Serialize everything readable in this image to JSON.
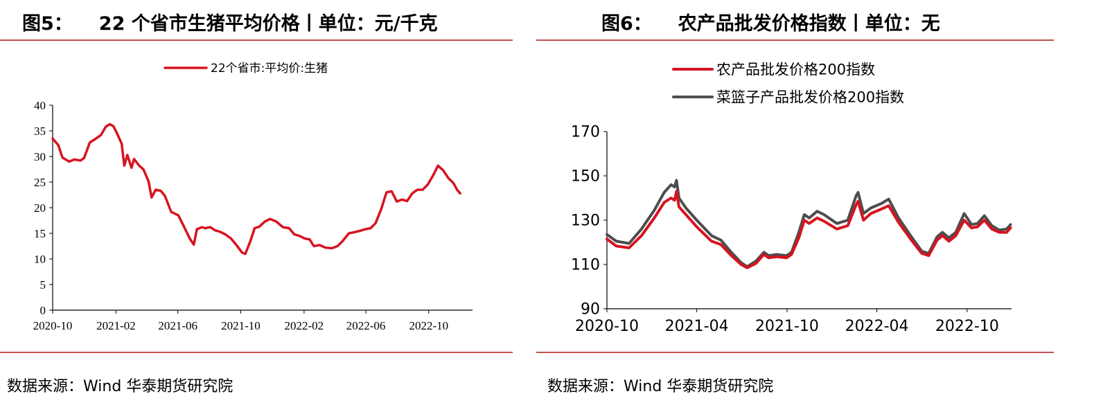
{
  "left": {
    "figure_number": "图5：",
    "title": "22 个省市生猪平均价格丨单位：元/千克",
    "source": "数据来源：Wind  华泰期货研究院"
  },
  "right": {
    "figure_number": "图6：",
    "title": "农产品批发价格指数丨单位：无",
    "source": "数据来源：Wind  华泰期货研究院"
  },
  "colors": {
    "red": "#d7131f",
    "gray": "#4d4d4d",
    "rule": "#c0504d"
  },
  "chart_data": [
    {
      "type": "line",
      "title": "",
      "xlabel": "",
      "ylabel": "",
      "ylim": [
        0,
        40
      ],
      "yticks": [
        "0",
        "5",
        "10",
        "15",
        "20",
        "25",
        "30",
        "35",
        "40"
      ],
      "xticks": [
        "2020-10",
        "2021-02",
        "2021-06",
        "2021-10",
        "2022-02",
        "2022-06",
        "2022-10"
      ],
      "legend_position": "top-center",
      "grid": false,
      "series": [
        {
          "name": "22个省市:平均价:生猪",
          "color": "#d7131f",
          "points": [
            [
              "2020-10-01",
              33.5
            ],
            [
              "2020-10-12",
              32.2
            ],
            [
              "2020-10-20",
              29.8
            ],
            [
              "2020-11-02",
              29.0
            ],
            [
              "2020-11-12",
              29.4
            ],
            [
              "2020-11-24",
              29.2
            ],
            [
              "2020-12-01",
              29.7
            ],
            [
              "2020-12-12",
              32.7
            ],
            [
              "2020-12-24",
              33.5
            ],
            [
              "2021-01-03",
              34.2
            ],
            [
              "2021-01-12",
              35.8
            ],
            [
              "2021-01-20",
              36.3
            ],
            [
              "2021-01-27",
              35.9
            ],
            [
              "2021-02-03",
              34.5
            ],
            [
              "2021-02-12",
              32.5
            ],
            [
              "2021-02-17",
              28.2
            ],
            [
              "2021-02-23",
              30.3
            ],
            [
              "2021-03-03",
              27.8
            ],
            [
              "2021-03-08",
              29.5
            ],
            [
              "2021-03-18",
              28.2
            ],
            [
              "2021-03-26",
              27.5
            ],
            [
              "2021-04-05",
              25.2
            ],
            [
              "2021-04-11",
              22.0
            ],
            [
              "2021-04-19",
              23.5
            ],
            [
              "2021-04-29",
              23.3
            ],
            [
              "2021-05-07",
              22.3
            ],
            [
              "2021-05-19",
              19.2
            ],
            [
              "2021-06-02",
              18.5
            ],
            [
              "2021-06-12",
              16.5
            ],
            [
              "2021-06-24",
              14.0
            ],
            [
              "2021-07-02",
              12.8
            ],
            [
              "2021-07-08",
              15.8
            ],
            [
              "2021-07-18",
              16.2
            ],
            [
              "2021-07-24",
              16.0
            ],
            [
              "2021-08-03",
              16.2
            ],
            [
              "2021-08-12",
              15.6
            ],
            [
              "2021-08-22",
              15.3
            ],
            [
              "2021-09-01",
              14.8
            ],
            [
              "2021-09-12",
              14.0
            ],
            [
              "2021-09-22",
              12.8
            ],
            [
              "2021-10-04",
              11.2
            ],
            [
              "2021-10-10",
              11.0
            ],
            [
              "2021-10-20",
              13.5
            ],
            [
              "2021-10-28",
              16.0
            ],
            [
              "2021-11-06",
              16.3
            ],
            [
              "2021-11-17",
              17.3
            ],
            [
              "2021-11-27",
              17.8
            ],
            [
              "2021-12-09",
              17.3
            ],
            [
              "2021-12-22",
              16.2
            ],
            [
              "2022-01-03",
              16.0
            ],
            [
              "2022-01-13",
              14.8
            ],
            [
              "2022-01-23",
              14.5
            ],
            [
              "2022-02-02",
              14.0
            ],
            [
              "2022-02-12",
              13.8
            ],
            [
              "2022-02-20",
              12.5
            ],
            [
              "2022-03-03",
              12.7
            ],
            [
              "2022-03-15",
              12.2
            ],
            [
              "2022-03-27",
              12.1
            ],
            [
              "2022-04-07",
              12.5
            ],
            [
              "2022-04-17",
              13.5
            ],
            [
              "2022-04-29",
              15.0
            ],
            [
              "2022-05-09",
              15.2
            ],
            [
              "2022-05-21",
              15.5
            ],
            [
              "2022-05-31",
              15.8
            ],
            [
              "2022-06-10",
              16.0
            ],
            [
              "2022-06-20",
              17.0
            ],
            [
              "2022-07-01",
              19.8
            ],
            [
              "2022-07-11",
              23.0
            ],
            [
              "2022-07-21",
              23.2
            ],
            [
              "2022-07-31",
              21.2
            ],
            [
              "2022-08-10",
              21.6
            ],
            [
              "2022-08-20",
              21.3
            ],
            [
              "2022-08-30",
              22.8
            ],
            [
              "2022-09-09",
              23.5
            ],
            [
              "2022-09-19",
              23.5
            ],
            [
              "2022-09-29",
              24.5
            ],
            [
              "2022-10-09",
              26.2
            ],
            [
              "2022-10-19",
              28.2
            ],
            [
              "2022-10-29",
              27.3
            ],
            [
              "2022-11-08",
              25.8
            ],
            [
              "2022-11-18",
              24.8
            ],
            [
              "2022-11-25",
              23.5
            ],
            [
              "2022-12-01",
              22.8
            ]
          ]
        }
      ]
    },
    {
      "type": "line",
      "title": "",
      "xlabel": "",
      "ylabel": "",
      "ylim": [
        90,
        170
      ],
      "yticks": [
        "90",
        "110",
        "130",
        "150",
        "170"
      ],
      "xticks": [
        "2020-10",
        "2021-04",
        "2021-10",
        "2022-04",
        "2022-10"
      ],
      "legend_position": "top-left",
      "grid": false,
      "series": [
        {
          "name": "农产品批发价格200指数",
          "color": "#d7131f",
          "points": [
            [
              "2020-10-01",
              121.5
            ],
            [
              "2020-10-20",
              118.3
            ],
            [
              "2020-11-15",
              117.5
            ],
            [
              "2020-12-10",
              123.0
            ],
            [
              "2021-01-05",
              131.0
            ],
            [
              "2021-01-25",
              138.0
            ],
            [
              "2021-02-08",
              140.0
            ],
            [
              "2021-02-15",
              139.0
            ],
            [
              "2021-02-19",
              143.0
            ],
            [
              "2021-02-24",
              136.0
            ],
            [
              "2021-03-10",
              132.5
            ],
            [
              "2021-04-01",
              127.0
            ],
            [
              "2021-05-01",
              120.5
            ],
            [
              "2021-05-20",
              119.0
            ],
            [
              "2021-06-10",
              114.0
            ],
            [
              "2021-06-30",
              110.0
            ],
            [
              "2021-07-12",
              108.5
            ],
            [
              "2021-07-30",
              110.5
            ],
            [
              "2021-08-15",
              114.5
            ],
            [
              "2021-08-25",
              113.0
            ],
            [
              "2021-09-10",
              113.5
            ],
            [
              "2021-09-30",
              113.0
            ],
            [
              "2021-10-10",
              114.5
            ],
            [
              "2021-10-25",
              122.0
            ],
            [
              "2021-11-05",
              130.0
            ],
            [
              "2021-11-15",
              128.5
            ],
            [
              "2021-12-01",
              131.0
            ],
            [
              "2021-12-15",
              129.5
            ],
            [
              "2022-01-10",
              126.0
            ],
            [
              "2022-02-01",
              127.5
            ],
            [
              "2022-02-18",
              137.0
            ],
            [
              "2022-02-22",
              138.5
            ],
            [
              "2022-03-05",
              130.0
            ],
            [
              "2022-03-20",
              133.0
            ],
            [
              "2022-04-10",
              135.0
            ],
            [
              "2022-04-25",
              136.5
            ],
            [
              "2022-05-15",
              129.0
            ],
            [
              "2022-06-10",
              121.0
            ],
            [
              "2022-07-01",
              115.0
            ],
            [
              "2022-07-15",
              114.0
            ],
            [
              "2022-08-01",
              121.0
            ],
            [
              "2022-08-12",
              123.0
            ],
            [
              "2022-08-25",
              120.5
            ],
            [
              "2022-09-08",
              123.0
            ],
            [
              "2022-09-25",
              130.0
            ],
            [
              "2022-10-10",
              126.5
            ],
            [
              "2022-10-22",
              127.0
            ],
            [
              "2022-11-05",
              130.0
            ],
            [
              "2022-11-20",
              126.0
            ],
            [
              "2022-12-05",
              124.5
            ],
            [
              "2022-12-20",
              124.5
            ],
            [
              "2022-12-28",
              126.5
            ]
          ]
        },
        {
          "name": "菜篮子产品批发价格200指数",
          "color": "#4d4d4d",
          "points": [
            [
              "2020-10-01",
              123.5
            ],
            [
              "2020-10-20",
              120.5
            ],
            [
              "2020-11-15",
              119.5
            ],
            [
              "2020-12-10",
              126.0
            ],
            [
              "2021-01-05",
              134.5
            ],
            [
              "2021-01-25",
              142.5
            ],
            [
              "2021-02-08",
              146.0
            ],
            [
              "2021-02-15",
              145.0
            ],
            [
              "2021-02-19",
              148.0
            ],
            [
              "2021-02-24",
              140.0
            ],
            [
              "2021-03-10",
              135.5
            ],
            [
              "2021-04-01",
              130.0
            ],
            [
              "2021-05-01",
              123.0
            ],
            [
              "2021-05-20",
              121.0
            ],
            [
              "2021-06-10",
              115.5
            ],
            [
              "2021-06-30",
              110.8
            ],
            [
              "2021-07-12",
              109.0
            ],
            [
              "2021-07-30",
              111.5
            ],
            [
              "2021-08-15",
              115.5
            ],
            [
              "2021-08-25",
              114.0
            ],
            [
              "2021-09-10",
              114.5
            ],
            [
              "2021-09-30",
              114.0
            ],
            [
              "2021-10-10",
              115.5
            ],
            [
              "2021-10-25",
              124.5
            ],
            [
              "2021-11-05",
              132.5
            ],
            [
              "2021-11-15",
              131.0
            ],
            [
              "2021-12-01",
              134.0
            ],
            [
              "2021-12-15",
              132.5
            ],
            [
              "2022-01-10",
              128.5
            ],
            [
              "2022-02-01",
              130.0
            ],
            [
              "2022-02-18",
              141.0
            ],
            [
              "2022-02-22",
              142.5
            ],
            [
              "2022-03-05",
              133.0
            ],
            [
              "2022-03-20",
              135.5
            ],
            [
              "2022-04-10",
              137.5
            ],
            [
              "2022-04-25",
              139.5
            ],
            [
              "2022-05-15",
              131.0
            ],
            [
              "2022-06-10",
              122.5
            ],
            [
              "2022-07-01",
              116.0
            ],
            [
              "2022-07-15",
              115.0
            ],
            [
              "2022-08-01",
              122.5
            ],
            [
              "2022-08-12",
              124.5
            ],
            [
              "2022-08-25",
              122.0
            ],
            [
              "2022-09-08",
              124.5
            ],
            [
              "2022-09-25",
              133.0
            ],
            [
              "2022-10-10",
              128.0
            ],
            [
              "2022-10-22",
              128.5
            ],
            [
              "2022-11-05",
              132.0
            ],
            [
              "2022-11-20",
              127.5
            ],
            [
              "2022-12-05",
              125.5
            ],
            [
              "2022-12-20",
              126.0
            ],
            [
              "2022-12-28",
              128.0
            ]
          ]
        }
      ]
    }
  ]
}
